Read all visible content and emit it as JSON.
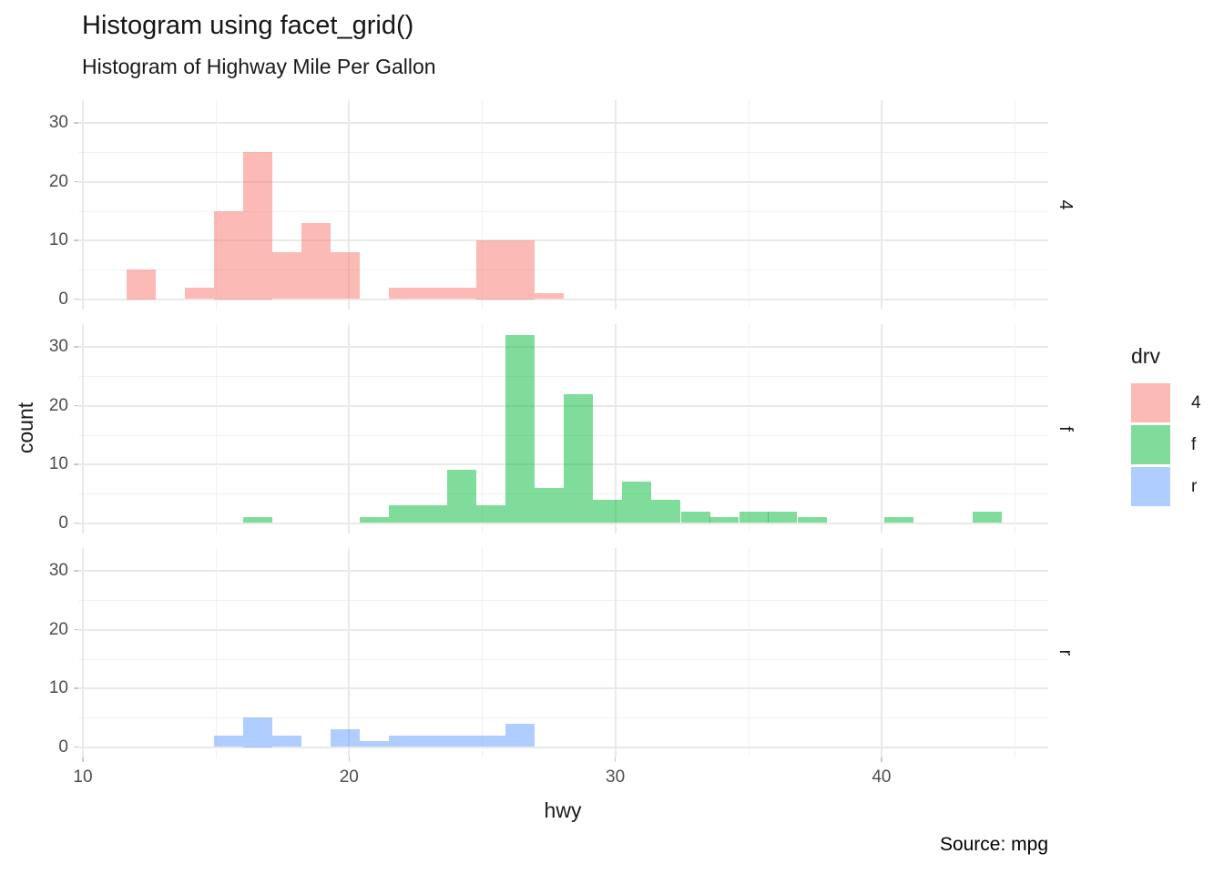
{
  "chart_data": {
    "type": "bar",
    "subtype": "faceted-histogram",
    "title": "Histogram using facet_grid()",
    "subtitle": "Histogram of Highway Mile Per Gallon",
    "xlabel": "hwy",
    "ylabel": "count",
    "caption": "Source: mpg",
    "binwidth": 1.095,
    "x_axis": {
      "ticks": [
        10,
        20,
        30,
        40
      ],
      "minor": [
        15,
        25,
        35,
        45
      ],
      "range": [
        9.85,
        46.3
      ]
    },
    "y_axis": {
      "ticks": [
        0,
        10,
        20,
        30
      ],
      "minor": [
        5,
        15,
        25
      ],
      "range": [
        -1.7,
        33.9
      ]
    },
    "grid": "on",
    "facet": {
      "variable": "drv",
      "labels": [
        "4",
        "f",
        "r"
      ]
    },
    "legend": {
      "title": "drv",
      "position": "right",
      "entries": [
        {
          "label": "4",
          "color": "rgba(248,118,109,0.5)"
        },
        {
          "label": "f",
          "color": "rgba(0,186,56,0.5)"
        },
        {
          "label": "r",
          "color": "rgba(97,156,255,0.5)"
        }
      ]
    },
    "panels": [
      {
        "facet": "4",
        "color": "rgba(248,118,109,0.5)",
        "bars": [
          [
            11.65,
            5
          ],
          [
            13.84,
            2
          ],
          [
            14.94,
            15
          ],
          [
            16.03,
            25
          ],
          [
            17.13,
            8
          ],
          [
            18.22,
            13
          ],
          [
            19.32,
            8
          ],
          [
            21.51,
            2
          ],
          [
            22.6,
            2
          ],
          [
            23.7,
            2
          ],
          [
            24.79,
            10
          ],
          [
            25.89,
            10
          ],
          [
            26.98,
            1
          ]
        ]
      },
      {
        "facet": "f",
        "color": "rgba(0,186,56,0.5)",
        "bars": [
          [
            16.03,
            1
          ],
          [
            20.41,
            1
          ],
          [
            21.51,
            3
          ],
          [
            22.6,
            3
          ],
          [
            23.7,
            9
          ],
          [
            24.79,
            3
          ],
          [
            25.89,
            32
          ],
          [
            26.98,
            6
          ],
          [
            28.08,
            22
          ],
          [
            29.17,
            4
          ],
          [
            30.27,
            7
          ],
          [
            31.36,
            4
          ],
          [
            32.46,
            2
          ],
          [
            33.55,
            1
          ],
          [
            34.65,
            2
          ],
          [
            35.74,
            2
          ],
          [
            36.84,
            1
          ],
          [
            40.12,
            1
          ],
          [
            43.41,
            2
          ]
        ]
      },
      {
        "facet": "r",
        "color": "rgba(97,156,255,0.5)",
        "bars": [
          [
            14.94,
            2
          ],
          [
            16.03,
            5
          ],
          [
            17.13,
            2
          ],
          [
            19.32,
            3
          ],
          [
            20.41,
            1
          ],
          [
            21.51,
            2
          ],
          [
            22.6,
            2
          ],
          [
            23.7,
            2
          ],
          [
            24.79,
            2
          ],
          [
            25.89,
            4
          ]
        ]
      }
    ]
  }
}
